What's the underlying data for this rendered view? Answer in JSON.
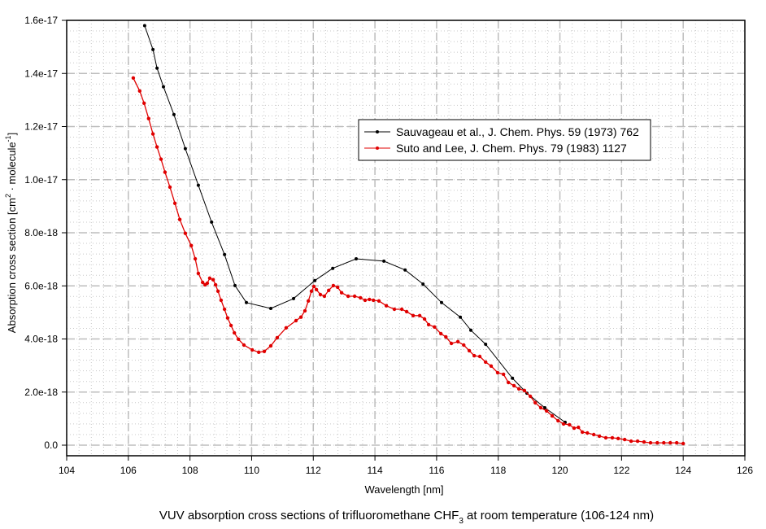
{
  "chart_data": {
    "type": "line",
    "title": "VUV absorption cross sections of trifluoromethane CHF",
    "title_subscript": "3",
    "title_suffix": " at room temperature (106-124 nm)",
    "xlabel": "Wavelength [nm]",
    "ylabel_main": "Absorption cross section [cm",
    "ylabel_sup1": "2",
    "ylabel_mid": " · molecule",
    "ylabel_sup2": "-1",
    "ylabel_end": "]",
    "xlim": [
      104,
      126
    ],
    "ylim": [
      -6e-19,
      1.6e-17
    ],
    "grid": true,
    "legend_position": "upper-right-center",
    "x_ticks": [
      104,
      106,
      108,
      110,
      112,
      114,
      116,
      118,
      120,
      122,
      124,
      126
    ],
    "x_tick_labels": [
      "104",
      "106",
      "108",
      "110",
      "112",
      "114",
      "116",
      "118",
      "120",
      "122",
      "124",
      "126"
    ],
    "y_ticks": [
      0,
      2e-18,
      4e-18,
      6e-18,
      8e-18,
      1e-17,
      1.2e-17,
      1.4e-17,
      1.6e-17
    ],
    "y_tick_labels": [
      "0.0",
      "2.0e-18",
      "4.0e-18",
      "6.0e-18",
      "8.0e-18",
      "1.0e-17",
      "1.2e-17",
      "1.4e-17",
      "1.6e-17"
    ],
    "series": [
      {
        "name": "Sauvageau et al., J. Chem. Phys. 59 (1973) 762",
        "color": "#000000",
        "unit_scale": 1e-18,
        "x": [
          106.53,
          106.8,
          106.93,
          107.14,
          107.48,
          107.85,
          108.27,
          108.7,
          109.12,
          109.46,
          109.83,
          110.62,
          111.36,
          112.05,
          112.63,
          113.39,
          114.29,
          114.98,
          115.56,
          116.16,
          116.77,
          117.11,
          117.59,
          118.46,
          118.93,
          119.51,
          120.17
        ],
        "y": [
          15.8,
          14.9,
          14.2,
          13.5,
          12.45,
          11.17,
          9.79,
          8.4,
          7.18,
          6.01,
          5.37,
          5.15,
          5.52,
          6.2,
          6.66,
          7.02,
          6.93,
          6.6,
          6.07,
          5.37,
          4.82,
          4.33,
          3.8,
          2.52,
          1.96,
          1.41,
          0.86
        ]
      },
      {
        "name": "Suto and Lee, J. Chem. Phys. 79 (1983) 1127",
        "color": "#e00000",
        "unit_scale": 1e-18,
        "x": [
          106.16,
          106.37,
          106.51,
          106.66,
          106.8,
          106.93,
          107.06,
          107.19,
          107.35,
          107.51,
          107.67,
          107.85,
          108.04,
          108.17,
          108.27,
          108.41,
          108.49,
          108.56,
          108.64,
          108.75,
          108.83,
          108.91,
          109.01,
          109.12,
          109.22,
          109.33,
          109.44,
          109.57,
          109.75,
          110.02,
          110.23,
          110.41,
          110.62,
          110.83,
          111.12,
          111.44,
          111.6,
          111.73,
          111.84,
          111.94,
          112.02,
          112.1,
          112.23,
          112.36,
          112.5,
          112.65,
          112.79,
          112.92,
          113.13,
          113.34,
          113.53,
          113.68,
          113.82,
          113.95,
          114.13,
          114.37,
          114.63,
          114.87,
          115.03,
          115.24,
          115.45,
          115.61,
          115.74,
          115.93,
          116.14,
          116.3,
          116.48,
          116.69,
          116.88,
          117.06,
          117.22,
          117.4,
          117.59,
          117.77,
          117.98,
          118.17,
          118.33,
          118.51,
          118.67,
          118.85,
          119.04,
          119.2,
          119.38,
          119.57,
          119.75,
          119.94,
          120.12,
          120.31,
          120.46,
          120.6,
          120.73,
          120.89,
          121.1,
          121.28,
          121.49,
          121.7,
          121.89,
          122.1,
          122.31,
          122.52,
          122.73,
          122.94,
          123.16,
          123.37,
          123.58,
          123.79,
          124.0
        ],
        "y": [
          13.83,
          13.34,
          12.88,
          12.3,
          11.72,
          11.23,
          10.77,
          10.28,
          9.72,
          9.11,
          8.5,
          7.98,
          7.52,
          7.02,
          6.47,
          6.13,
          6.04,
          6.1,
          6.29,
          6.23,
          6.04,
          5.8,
          5.46,
          5.12,
          4.79,
          4.51,
          4.23,
          3.99,
          3.77,
          3.59,
          3.5,
          3.53,
          3.74,
          4.05,
          4.42,
          4.69,
          4.82,
          5.06,
          5.43,
          5.8,
          5.98,
          5.86,
          5.67,
          5.61,
          5.83,
          6.01,
          5.95,
          5.74,
          5.61,
          5.61,
          5.55,
          5.46,
          5.49,
          5.46,
          5.43,
          5.25,
          5.12,
          5.12,
          5.03,
          4.88,
          4.88,
          4.75,
          4.54,
          4.45,
          4.2,
          4.08,
          3.83,
          3.9,
          3.77,
          3.56,
          3.37,
          3.34,
          3.13,
          2.98,
          2.73,
          2.67,
          2.36,
          2.24,
          2.12,
          2.06,
          1.84,
          1.6,
          1.41,
          1.29,
          1.1,
          0.92,
          0.8,
          0.77,
          0.64,
          0.67,
          0.49,
          0.46,
          0.4,
          0.34,
          0.28,
          0.28,
          0.25,
          0.21,
          0.15,
          0.15,
          0.12,
          0.09,
          0.09,
          0.09,
          0.09,
          0.09,
          0.06
        ]
      }
    ]
  }
}
